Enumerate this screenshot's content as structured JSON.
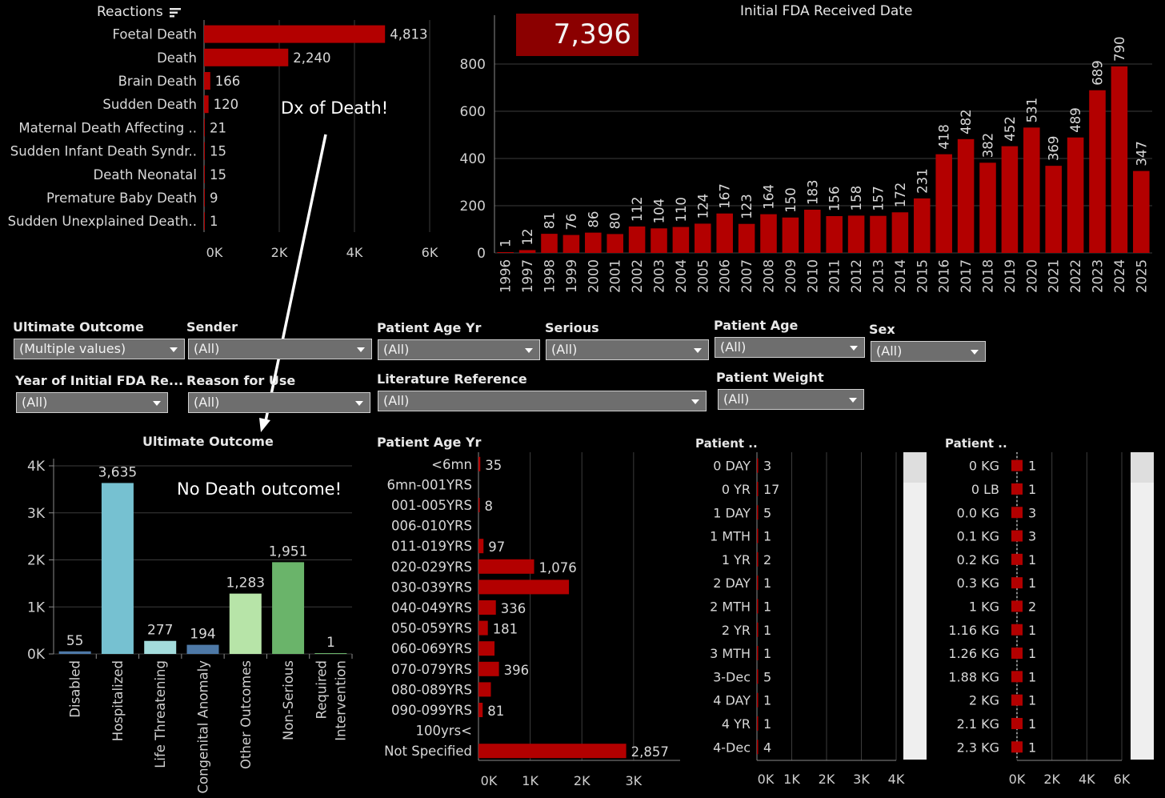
{
  "reactions": {
    "title": "Reactions",
    "icon": "sort-icon",
    "items": [
      {
        "label": "Foetal Death",
        "value": 4813,
        "text": "4,813"
      },
      {
        "label": "Death",
        "value": 2240,
        "text": "2,240"
      },
      {
        "label": "Brain Death",
        "value": 166,
        "text": "166"
      },
      {
        "label": "Sudden Death",
        "value": 120,
        "text": "120"
      },
      {
        "label": "Maternal Death Affecting ..",
        "value": 21,
        "text": "21"
      },
      {
        "label": "Sudden Infant Death Syndr..",
        "value": 15,
        "text": "15"
      },
      {
        "label": "Death Neonatal",
        "value": 15,
        "text": "15"
      },
      {
        "label": "Premature Baby Death",
        "value": 9,
        "text": "9"
      },
      {
        "label": "Sudden Unexplained Death..",
        "value": 1,
        "text": "1"
      }
    ],
    "axis_ticks": [
      "0K",
      "2K",
      "4K",
      "6K"
    ],
    "axis_max": 6000,
    "bar_color": "#b30000"
  },
  "annotations": {
    "dx_of_death": "Dx of Death!",
    "no_death_outcome": "No Death outcome!"
  },
  "fda": {
    "title": "Initial FDA Received Date",
    "total": "7,396",
    "years": [
      "1996",
      "1997",
      "1998",
      "1999",
      "2000",
      "2001",
      "2002",
      "2003",
      "2004",
      "2005",
      "2006",
      "2007",
      "2008",
      "2009",
      "2010",
      "2011",
      "2012",
      "2013",
      "2014",
      "2015",
      "2016",
      "2017",
      "2018",
      "2019",
      "2020",
      "2021",
      "2022",
      "2023",
      "2024",
      "2025"
    ],
    "values": [
      1,
      12,
      81,
      76,
      86,
      80,
      112,
      104,
      110,
      124,
      167,
      123,
      164,
      150,
      183,
      156,
      158,
      157,
      172,
      231,
      418,
      482,
      382,
      452,
      531,
      369,
      489,
      689,
      790,
      347
    ],
    "y_ticks": [
      "0",
      "200",
      "400",
      "600",
      "800"
    ],
    "y_max": 900,
    "bar_color": "#b30000",
    "total_box_color": "#8b0000"
  },
  "filters": {
    "row1": [
      {
        "label": "Ultimate Outcome",
        "value": "(Multiple values)"
      },
      {
        "label": "Sender",
        "value": "(All)"
      },
      {
        "label": "Patient Age Yr",
        "value": "(All)"
      },
      {
        "label": "Serious",
        "value": "(All)"
      },
      {
        "label": "Patient Age",
        "value": "(All)"
      },
      {
        "label": "Sex",
        "value": "(All)"
      }
    ],
    "row2": [
      {
        "label": "Year of Initial FDA Re...",
        "value": "(All)"
      },
      {
        "label": "Reason for Use",
        "value": "(All)"
      },
      {
        "label": "Literature Reference",
        "value": "(All)"
      },
      {
        "label": "Patient Weight",
        "value": "(All)"
      }
    ]
  },
  "outcome": {
    "title": "Ultimate Outcome",
    "categories": [
      "Disabled",
      "Hospitalized",
      "Life Threatening",
      "Congenital Anomaly",
      "Other Outcomes",
      "Non-Serious",
      "Required Intervention"
    ],
    "category_lines": [
      [
        "Disabled"
      ],
      [
        "Hospitalized"
      ],
      [
        "Life Threatening"
      ],
      [
        "Congenital Anomaly"
      ],
      [
        "Other Outcomes"
      ],
      [
        "Non-Serious"
      ],
      [
        "Required",
        "Intervention"
      ]
    ],
    "values": [
      55,
      3635,
      277,
      194,
      1283,
      1951,
      1
    ],
    "texts": [
      "55",
      "3,635",
      "277",
      "194",
      "1,283",
      "1,951",
      "1"
    ],
    "colors": [
      "#4e79a7",
      "#76c1d1",
      "#a3dcdc",
      "#4e79a7",
      "#b7e4a8",
      "#6ab46a",
      "#6ab46a"
    ],
    "y_ticks": [
      "0K",
      "1K",
      "2K",
      "3K",
      "4K"
    ],
    "y_max": 4000
  },
  "age_yr": {
    "title": "Patient Age Yr",
    "items": [
      {
        "label": "<6mn",
        "value": 35,
        "text": "35"
      },
      {
        "label": "6mn-001YRS",
        "value": 0,
        "text": ""
      },
      {
        "label": "001-005YRS",
        "value": 8,
        "text": "8"
      },
      {
        "label": "006-010YRS",
        "value": 0,
        "text": ""
      },
      {
        "label": "011-019YRS",
        "value": 97,
        "text": "97"
      },
      {
        "label": "020-029YRS",
        "value": 1076,
        "text": "1,076"
      },
      {
        "label": "030-039YRS",
        "value": 1750,
        "text": ""
      },
      {
        "label": "040-049YRS",
        "value": 336,
        "text": "336"
      },
      {
        "label": "050-059YRS",
        "value": 181,
        "text": "181"
      },
      {
        "label": "060-069YRS",
        "value": 310,
        "text": ""
      },
      {
        "label": "070-079YRS",
        "value": 396,
        "text": "396"
      },
      {
        "label": "080-089YRS",
        "value": 240,
        "text": ""
      },
      {
        "label": "090-099YRS",
        "value": 81,
        "text": "81"
      },
      {
        "label": "100yrs<",
        "value": 0,
        "text": ""
      },
      {
        "label": "Not Specified",
        "value": 2857,
        "text": "2,857"
      }
    ],
    "axis_ticks": [
      "0K",
      "1K",
      "2K",
      "3K"
    ],
    "axis_max": 3900
  },
  "patient_age": {
    "title": "Patient ..",
    "items": [
      {
        "label": "0 DAY",
        "value": 3
      },
      {
        "label": "0 YR",
        "value": 17
      },
      {
        "label": "1 DAY",
        "value": 5
      },
      {
        "label": "1 MTH",
        "value": 1
      },
      {
        "label": "1 YR",
        "value": 2
      },
      {
        "label": "2 DAY",
        "value": 1
      },
      {
        "label": "2 MTH",
        "value": 1
      },
      {
        "label": "2 YR",
        "value": 1
      },
      {
        "label": "3 MTH",
        "value": 1
      },
      {
        "label": "3-Dec",
        "value": 5
      },
      {
        "label": "4 DAY",
        "value": 1
      },
      {
        "label": "4 YR",
        "value": 1
      },
      {
        "label": "4-Dec",
        "value": 4
      }
    ],
    "axis_ticks": [
      "0K",
      "1K",
      "2K",
      "3K",
      "4K"
    ]
  },
  "patient_weight": {
    "title": "Patient ..",
    "items": [
      {
        "label": "0 KG",
        "value": 1
      },
      {
        "label": "0 LB",
        "value": 1
      },
      {
        "label": "0.0 KG",
        "value": 3
      },
      {
        "label": "0.1 KG",
        "value": 3
      },
      {
        "label": "0.2 KG",
        "value": 1
      },
      {
        "label": "0.3 KG",
        "value": 1
      },
      {
        "label": "1 KG",
        "value": 2
      },
      {
        "label": "1.16 KG",
        "value": 1
      },
      {
        "label": "1.26 KG",
        "value": 1
      },
      {
        "label": "1.88 KG",
        "value": 1
      },
      {
        "label": "2 KG",
        "value": 1
      },
      {
        "label": "2.1 KG",
        "value": 1
      },
      {
        "label": "2.3 KG",
        "value": 1
      }
    ],
    "axis_ticks": [
      "0K",
      "2K",
      "4K",
      "6K"
    ]
  }
}
